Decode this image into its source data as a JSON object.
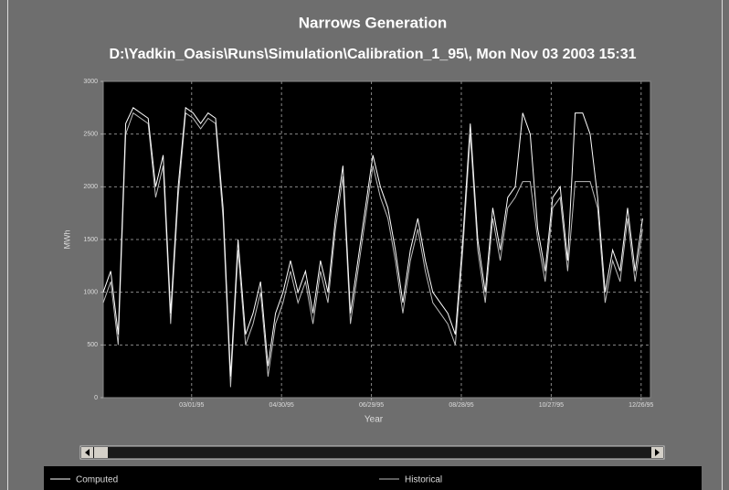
{
  "chart_data": {
    "type": "line",
    "title": "Narrows Generation",
    "subtitle": "D:\\Yadkin_Oasis\\Runs\\Simulation\\Calibration_1_95\\, Mon Nov 03 2003 15:31",
    "x_label": "Year",
    "y_label": "MWh",
    "x": [
      "01/01/95",
      "01/06/95",
      "01/11/95",
      "01/16/95",
      "01/21/95",
      "01/26/95",
      "01/31/95",
      "02/05/95",
      "02/10/95",
      "02/15/95",
      "02/20/95",
      "02/25/95",
      "03/02/95",
      "03/07/95",
      "03/12/95",
      "03/17/95",
      "03/22/95",
      "03/27/95",
      "04/01/95",
      "04/06/95",
      "04/11/95",
      "04/16/95",
      "04/21/95",
      "04/26/95",
      "05/01/95",
      "05/06/95",
      "05/11/95",
      "05/16/95",
      "05/21/95",
      "05/26/95",
      "05/31/95",
      "06/05/95",
      "06/10/95",
      "06/15/95",
      "06/20/95",
      "06/25/95",
      "06/30/95",
      "07/05/95",
      "07/10/95",
      "07/15/95",
      "07/20/95",
      "07/25/95",
      "07/30/95",
      "08/04/95",
      "08/09/95",
      "08/14/95",
      "08/19/95",
      "08/24/95",
      "08/29/95",
      "09/03/95",
      "09/08/95",
      "09/13/95",
      "09/18/95",
      "09/23/95",
      "09/28/95",
      "10/03/95",
      "10/08/95",
      "10/13/95",
      "10/18/95",
      "10/23/95",
      "10/28/95",
      "11/02/95",
      "11/07/95",
      "11/12/95",
      "11/17/95",
      "11/22/95",
      "11/27/95",
      "12/02/95",
      "12/07/95",
      "12/12/95",
      "12/17/95",
      "12/22/95",
      "12/27/95"
    ],
    "series": [
      {
        "name": "Computed",
        "color": "#ffffff",
        "values": [
          1000,
          1200,
          600,
          2600,
          2750,
          2700,
          2650,
          2000,
          2300,
          800,
          2000,
          2750,
          2700,
          2600,
          2700,
          2650,
          1800,
          200,
          1500,
          600,
          800,
          1100,
          300,
          800,
          1000,
          1300,
          1000,
          1200,
          800,
          1300,
          1000,
          1700,
          2200,
          800,
          1300,
          1800,
          2300,
          2000,
          1800,
          1400,
          900,
          1400,
          1700,
          1300,
          1000,
          900,
          800,
          600,
          1500,
          2600,
          1500,
          1000,
          1800,
          1400,
          1900,
          2000,
          2700,
          2500,
          1600,
          1200,
          1900,
          2000,
          1300,
          2700,
          2700,
          2500,
          1900,
          1000,
          1400,
          1200,
          1800,
          1200,
          1700
        ]
      },
      {
        "name": "Historical",
        "color": "#bdbdbd",
        "values": [
          900,
          1100,
          500,
          2500,
          2700,
          2650,
          2600,
          1900,
          2200,
          700,
          1900,
          2700,
          2650,
          2550,
          2650,
          2600,
          1700,
          100,
          1400,
          500,
          700,
          1000,
          200,
          700,
          900,
          1200,
          900,
          1100,
          700,
          1200,
          900,
          1600,
          2100,
          700,
          1200,
          1700,
          2200,
          1900,
          1700,
          1300,
          800,
          1300,
          1600,
          1200,
          900,
          800,
          700,
          500,
          1400,
          2500,
          1400,
          900,
          1700,
          1300,
          1800,
          1900,
          2050,
          2050,
          1500,
          1100,
          1800,
          1900,
          1200,
          2050,
          2050,
          2050,
          1800,
          900,
          1300,
          1100,
          1700,
          1100,
          1600
        ]
      }
    ],
    "xlim": [
      "01/01/95",
      "12/31/95"
    ],
    "xticks": [
      "03/01/95",
      "04/30/95",
      "06/29/95",
      "08/28/95",
      "10/27/95",
      "12/26/95"
    ],
    "ylim": [
      0,
      3000
    ],
    "yticks": [
      0,
      500,
      1000,
      1500,
      2000,
      2500,
      3000
    ],
    "grid": true
  }
}
